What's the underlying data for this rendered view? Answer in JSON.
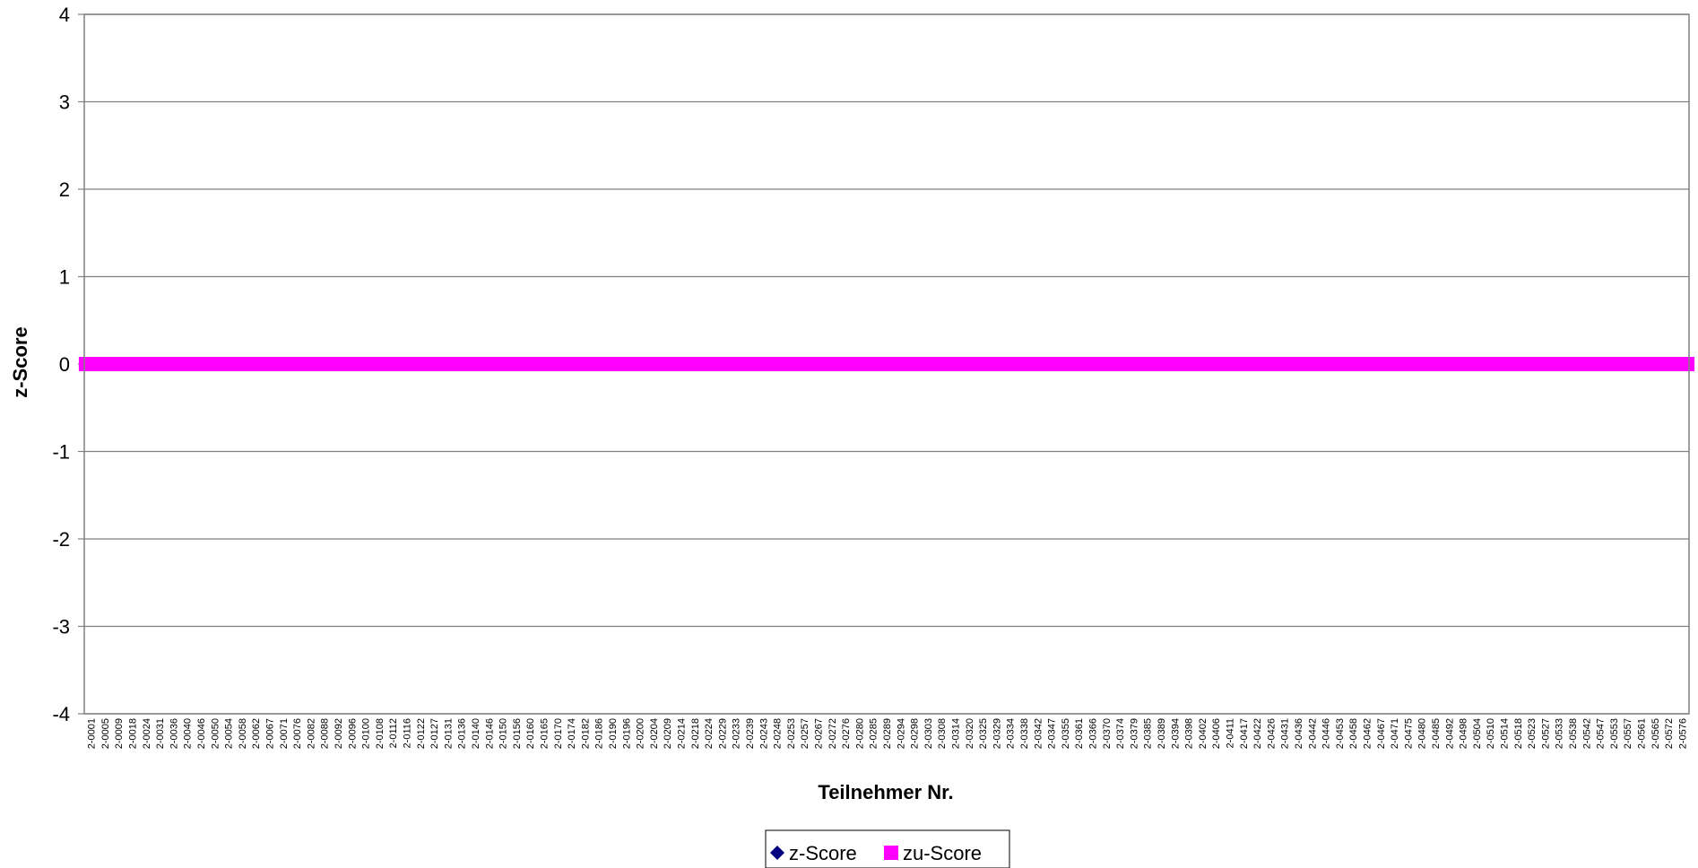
{
  "chart_data": {
    "type": "scatter",
    "title": "",
    "xlabel": "Teilnehmer Nr.",
    "ylabel": "z-Score",
    "ylim": [
      -4,
      4
    ],
    "yticks": [
      "4",
      "3",
      "2",
      "1",
      "0",
      "-1",
      "-2",
      "-3",
      "-4"
    ],
    "grid": true,
    "legend_position": "bottom",
    "x_tick_labels": [
      "2-0001",
      "2-0005",
      "2-0009",
      "2-0018",
      "2-0024",
      "2-0031",
      "2-0036",
      "2-0040",
      "2-0046",
      "2-0050",
      "2-0054",
      "2-0058",
      "2-0062",
      "2-0067",
      "2-0071",
      "2-0076",
      "2-0082",
      "2-0088",
      "2-0092",
      "2-0096",
      "2-0100",
      "2-0108",
      "2-0112",
      "2-0116",
      "2-0122",
      "2-0127",
      "2-0131",
      "2-0136",
      "2-0140",
      "2-0146",
      "2-0150",
      "2-0156",
      "2-0160",
      "2-0165",
      "2-0170",
      "2-0174",
      "2-0182",
      "2-0186",
      "2-0190",
      "2-0196",
      "2-0200",
      "2-0204",
      "2-0209",
      "2-0214",
      "2-0218",
      "2-0224",
      "2-0229",
      "2-0233",
      "2-0239",
      "2-0243",
      "2-0248",
      "2-0253",
      "2-0257",
      "2-0267",
      "2-0272",
      "2-0276",
      "2-0280",
      "2-0285",
      "2-0289",
      "2-0294",
      "2-0298",
      "2-0303",
      "2-0308",
      "2-0314",
      "2-0320",
      "2-0325",
      "2-0329",
      "2-0334",
      "2-0338",
      "2-0342",
      "2-0347",
      "2-0355",
      "2-0361",
      "2-0366",
      "2-0370",
      "2-0374",
      "2-0379",
      "2-0385",
      "2-0389",
      "2-0394",
      "2-0398",
      "2-0402",
      "2-0406",
      "2-0411",
      "2-0417",
      "2-0422",
      "2-0426",
      "2-0431",
      "2-0436",
      "2-0442",
      "2-0446",
      "2-0453",
      "2-0458",
      "2-0462",
      "2-0467",
      "2-0471",
      "2-0475",
      "2-0480",
      "2-0485",
      "2-0492",
      "2-0498",
      "2-0504",
      "2-0510",
      "2-0514",
      "2-0518",
      "2-0523",
      "2-0527",
      "2-0533",
      "2-0538",
      "2-0542",
      "2-0547",
      "2-0553",
      "2-0557",
      "2-0561",
      "2-0565",
      "2-0572",
      "2-0576"
    ],
    "series": [
      {
        "name": "z-Score",
        "marker": "diamond",
        "color": "#000080",
        "value": 0
      },
      {
        "name": "zu-Score",
        "marker": "square",
        "color": "#ff00ff",
        "value": 0
      }
    ],
    "points_per_tick": 4
  }
}
